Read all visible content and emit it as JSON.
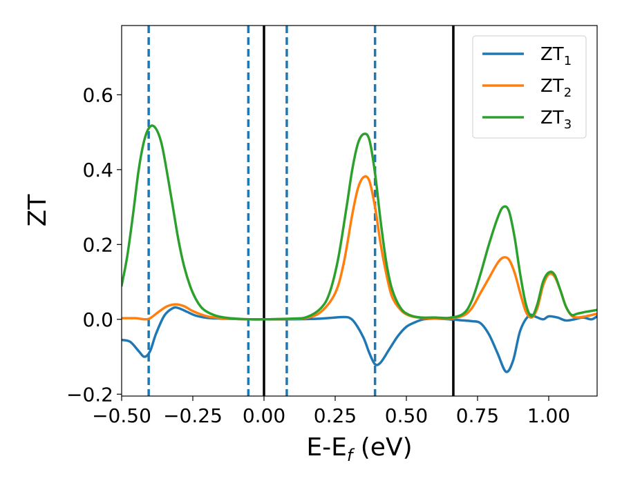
{
  "chart_data": {
    "type": "line",
    "xlabel": "E-E",
    "xlabel_sub": "f",
    "xlabel_unit": " (eV)",
    "ylabel": "ZT",
    "xlim": [
      -0.5,
      1.17
    ],
    "ylim": [
      -0.205,
      0.785
    ],
    "x_ticks": [
      -0.5,
      -0.25,
      0.0,
      0.25,
      0.5,
      0.75,
      1.0
    ],
    "x_tick_labels": [
      "−0.50",
      "−0.25",
      "0.00",
      "0.25",
      "0.50",
      "0.75",
      "1.00"
    ],
    "y_ticks": [
      -0.2,
      0.0,
      0.2,
      0.4,
      0.6
    ],
    "y_tick_labels": [
      "−0.2",
      "0.0",
      "0.2",
      "0.4",
      "0.6"
    ],
    "grid": false,
    "legend_position": "top-right",
    "vlines_solid": [
      0.0,
      0.665
    ],
    "vlines_dashed": [
      -0.405,
      -0.055,
      0.08,
      0.39
    ],
    "vline_solid_color": "#000000",
    "vline_dashed_color": "#1f77b4",
    "series": [
      {
        "name": "ZT",
        "name_sub": "1",
        "color": "#1f77b4",
        "x": [
          -0.5,
          -0.47,
          -0.44,
          -0.42,
          -0.4,
          -0.38,
          -0.35,
          -0.32,
          -0.3,
          -0.27,
          -0.24,
          -0.2,
          -0.15,
          -0.1,
          -0.05,
          0.0,
          0.1,
          0.2,
          0.25,
          0.28,
          0.3,
          0.32,
          0.35,
          0.37,
          0.39,
          0.41,
          0.44,
          0.47,
          0.5,
          0.53,
          0.56,
          0.6,
          0.65,
          0.7,
          0.73,
          0.76,
          0.79,
          0.82,
          0.85,
          0.875,
          0.9,
          0.93,
          0.95,
          0.98,
          1.0,
          1.03,
          1.06,
          1.09,
          1.12,
          1.15,
          1.17
        ],
        "y": [
          -0.055,
          -0.06,
          -0.085,
          -0.1,
          -0.085,
          -0.04,
          0.01,
          0.03,
          0.03,
          0.02,
          0.01,
          0.004,
          0.002,
          0.001,
          0.0,
          0.0,
          0.0,
          0.002,
          0.005,
          0.006,
          0.004,
          -0.01,
          -0.05,
          -0.09,
          -0.12,
          -0.115,
          -0.08,
          -0.045,
          -0.02,
          -0.008,
          0.0,
          0.002,
          0.0,
          -0.003,
          -0.005,
          -0.01,
          -0.04,
          -0.09,
          -0.14,
          -0.11,
          -0.03,
          0.01,
          0.008,
          0.0,
          0.008,
          0.005,
          -0.003,
          0.0,
          0.005,
          0.0,
          0.008
        ]
      },
      {
        "name": "ZT",
        "name_sub": "2",
        "color": "#ff7f0e",
        "x": [
          -0.5,
          -0.45,
          -0.42,
          -0.4,
          -0.37,
          -0.34,
          -0.31,
          -0.28,
          -0.25,
          -0.2,
          -0.15,
          -0.1,
          -0.05,
          0.0,
          0.1,
          0.15,
          0.2,
          0.25,
          0.28,
          0.31,
          0.33,
          0.35,
          0.37,
          0.39,
          0.41,
          0.43,
          0.45,
          0.48,
          0.51,
          0.55,
          0.6,
          0.65,
          0.7,
          0.73,
          0.76,
          0.79,
          0.82,
          0.84,
          0.86,
          0.88,
          0.9,
          0.92,
          0.94,
          0.96,
          0.98,
          1.0,
          1.02,
          1.04,
          1.06,
          1.08,
          1.1,
          1.13,
          1.17
        ],
        "y": [
          0.003,
          0.003,
          0.0,
          0.003,
          0.02,
          0.035,
          0.04,
          0.035,
          0.022,
          0.008,
          0.003,
          0.001,
          0.0,
          0.0,
          0.001,
          0.004,
          0.02,
          0.07,
          0.15,
          0.28,
          0.35,
          0.38,
          0.37,
          0.3,
          0.2,
          0.12,
          0.06,
          0.025,
          0.01,
          0.004,
          0.002,
          0.002,
          0.01,
          0.03,
          0.07,
          0.11,
          0.15,
          0.165,
          0.16,
          0.125,
          0.07,
          0.02,
          0.005,
          0.03,
          0.09,
          0.12,
          0.115,
          0.08,
          0.035,
          0.01,
          0.005,
          0.008,
          0.015
        ]
      },
      {
        "name": "ZT",
        "name_sub": "3",
        "color": "#2ca02c",
        "x": [
          -0.5,
          -0.48,
          -0.46,
          -0.44,
          -0.42,
          -0.4,
          -0.38,
          -0.36,
          -0.34,
          -0.32,
          -0.3,
          -0.28,
          -0.26,
          -0.24,
          -0.22,
          -0.2,
          -0.17,
          -0.14,
          -0.1,
          -0.05,
          0.0,
          0.1,
          0.15,
          0.2,
          0.23,
          0.26,
          0.29,
          0.31,
          0.33,
          0.35,
          0.37,
          0.39,
          0.41,
          0.43,
          0.45,
          0.48,
          0.51,
          0.55,
          0.6,
          0.65,
          0.7,
          0.73,
          0.76,
          0.79,
          0.82,
          0.84,
          0.86,
          0.88,
          0.9,
          0.92,
          0.94,
          0.96,
          0.98,
          1.0,
          1.02,
          1.04,
          1.06,
          1.08,
          1.1,
          1.13,
          1.17
        ],
        "y": [
          0.09,
          0.17,
          0.28,
          0.4,
          0.48,
          0.515,
          0.51,
          0.47,
          0.39,
          0.3,
          0.21,
          0.14,
          0.09,
          0.055,
          0.032,
          0.02,
          0.01,
          0.005,
          0.002,
          0.0,
          0.0,
          0.002,
          0.006,
          0.03,
          0.07,
          0.16,
          0.3,
          0.4,
          0.47,
          0.495,
          0.48,
          0.39,
          0.26,
          0.15,
          0.08,
          0.03,
          0.012,
          0.005,
          0.005,
          0.004,
          0.015,
          0.05,
          0.12,
          0.2,
          0.27,
          0.3,
          0.29,
          0.22,
          0.12,
          0.04,
          0.008,
          0.04,
          0.1,
          0.125,
          0.12,
          0.08,
          0.035,
          0.012,
          0.015,
          0.02,
          0.025
        ]
      }
    ]
  }
}
